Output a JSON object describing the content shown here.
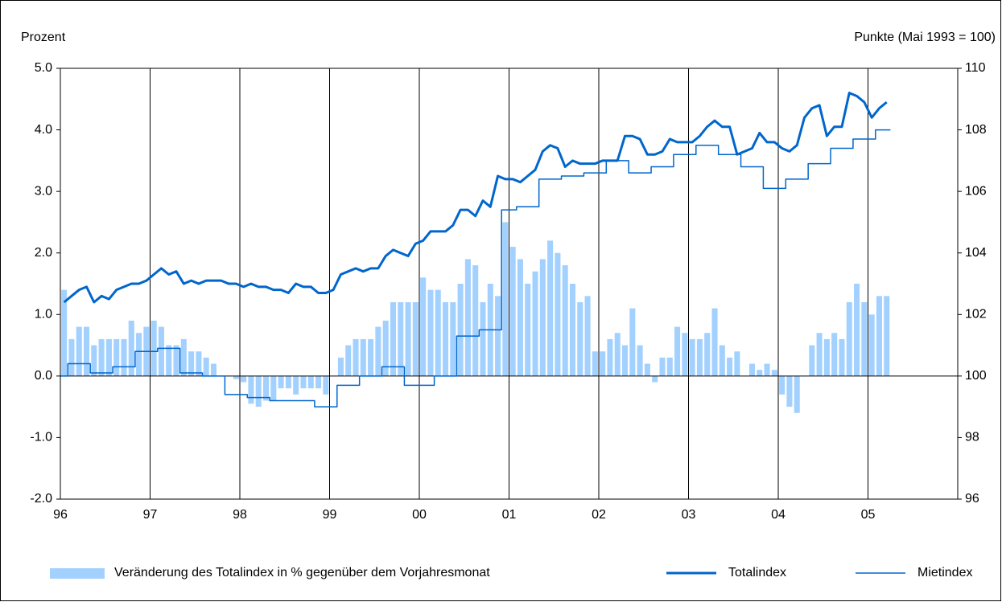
{
  "chart_data": {
    "type": "bar-line",
    "y_label": "Prozent",
    "y2_label": "Punkte (Mai 1993 = 100)",
    "categories": [
      "96",
      null,
      null,
      null,
      null,
      null,
      null,
      null,
      null,
      null,
      null,
      null,
      "97",
      null,
      null,
      null,
      null,
      null,
      null,
      null,
      null,
      null,
      null,
      null,
      "98",
      null,
      null,
      null,
      null,
      null,
      null,
      null,
      null,
      null,
      null,
      null,
      "99",
      null,
      null,
      null,
      null,
      null,
      null,
      null,
      null,
      null,
      null,
      null,
      "00",
      null,
      null,
      null,
      null,
      null,
      null,
      null,
      null,
      null,
      null,
      null,
      "01",
      null,
      null,
      null,
      null,
      null,
      null,
      null,
      null,
      null,
      null,
      null,
      "02",
      null,
      null,
      null,
      null,
      null,
      null,
      null,
      null,
      null,
      null,
      null,
      "03",
      null,
      null,
      null,
      null,
      null,
      null,
      null,
      null,
      null,
      null,
      null,
      "04",
      null,
      null,
      null,
      null,
      null,
      null,
      null,
      null,
      null,
      null,
      null,
      "05",
      null,
      null,
      null,
      null,
      null,
      null,
      null,
      null,
      null,
      null,
      null
    ],
    "series": [
      {
        "name": "Veränderung des Totalindex in % gegenüber dem Vorjahresmonat",
        "kind": "bar",
        "color": "#a3d1ff",
        "values": [
          1.4,
          0.6,
          0.8,
          0.8,
          0.5,
          0.6,
          0.6,
          0.6,
          0.6,
          0.9,
          0.7,
          0.8,
          0.9,
          0.8,
          0.5,
          0.5,
          0.6,
          0.4,
          0.4,
          0.3,
          0.2,
          0.0,
          0.0,
          -0.05,
          -0.1,
          -0.45,
          -0.5,
          -0.4,
          -0.4,
          -0.2,
          -0.2,
          -0.3,
          -0.2,
          -0.2,
          -0.2,
          -0.3,
          0.0,
          0.3,
          0.5,
          0.6,
          0.6,
          0.6,
          0.8,
          0.9,
          1.2,
          1.2,
          1.2,
          1.2,
          1.6,
          1.4,
          1.4,
          1.2,
          1.2,
          1.5,
          1.9,
          1.8,
          1.2,
          1.5,
          1.3,
          2.5,
          2.1,
          1.9,
          1.5,
          1.7,
          1.9,
          2.2,
          2.0,
          1.8,
          1.5,
          1.2,
          1.3,
          0.4,
          0.4,
          0.6,
          0.7,
          0.5,
          1.1,
          0.5,
          0.2,
          -0.1,
          0.3,
          0.3,
          0.8,
          0.7,
          0.6,
          0.6,
          0.7,
          1.1,
          0.5,
          0.3,
          0.4,
          0.0,
          0.2,
          0.1,
          0.2,
          0.1,
          -0.3,
          -0.5,
          -0.6,
          0.0,
          0.5,
          0.7,
          0.6,
          0.7,
          0.6,
          1.2,
          1.5,
          1.2,
          1.0,
          1.3,
          1.3,
          null,
          null,
          null,
          null,
          null,
          null,
          null,
          null,
          null
        ]
      },
      {
        "name": "Totalindex",
        "kind": "line",
        "axis": "y2",
        "color": "#0066cc",
        "width": 3,
        "values": [
          102.4,
          102.6,
          102.8,
          102.9,
          102.4,
          102.6,
          102.5,
          102.8,
          102.9,
          103.0,
          103.0,
          103.1,
          103.3,
          103.5,
          103.3,
          103.4,
          103.0,
          103.1,
          103.0,
          103.1,
          103.1,
          103.1,
          103.0,
          103.0,
          102.9,
          103.0,
          102.9,
          102.9,
          102.8,
          102.8,
          102.7,
          103.0,
          102.9,
          102.9,
          102.7,
          102.7,
          102.8,
          103.3,
          103.4,
          103.5,
          103.4,
          103.5,
          103.5,
          103.9,
          104.1,
          104.0,
          103.9,
          104.3,
          104.4,
          104.7,
          104.7,
          104.7,
          104.9,
          105.4,
          105.4,
          105.2,
          105.7,
          105.5,
          106.5,
          106.4,
          106.4,
          106.3,
          106.5,
          106.7,
          107.3,
          107.5,
          107.4,
          106.8,
          107.0,
          106.9,
          106.9,
          106.9,
          107.0,
          107.0,
          107.0,
          107.8,
          107.8,
          107.7,
          107.2,
          107.2,
          107.3,
          107.7,
          107.6,
          107.6,
          107.6,
          107.8,
          108.1,
          108.3,
          108.1,
          108.1,
          107.2,
          107.3,
          107.4,
          107.9,
          107.6,
          107.6,
          107.4,
          107.3,
          107.5,
          108.4,
          108.7,
          108.8,
          107.8,
          108.1,
          108.1,
          109.2,
          109.1,
          108.9,
          108.4,
          108.7,
          108.9,
          null,
          null,
          null,
          null,
          null,
          null,
          null,
          null,
          null
        ]
      },
      {
        "name": "Mietindex",
        "kind": "step",
        "axis": "y2",
        "color": "#0066cc",
        "width": 1.5,
        "values": [
          100.0,
          100.4,
          100.4,
          100.4,
          100.1,
          100.1,
          100.1,
          100.3,
          100.3,
          100.3,
          100.8,
          100.8,
          100.8,
          100.9,
          100.9,
          100.9,
          100.1,
          100.1,
          100.1,
          100.0,
          100.0,
          100.0,
          99.4,
          99.4,
          99.4,
          99.3,
          99.3,
          99.3,
          99.2,
          99.2,
          99.2,
          99.2,
          99.2,
          99.2,
          99.0,
          99.0,
          99.0,
          99.7,
          99.7,
          99.7,
          100.0,
          100.0,
          100.0,
          100.3,
          100.3,
          100.3,
          99.7,
          99.7,
          99.7,
          99.7,
          100.0,
          100.0,
          100.0,
          101.3,
          101.3,
          101.3,
          101.5,
          101.5,
          101.5,
          105.4,
          105.4,
          105.5,
          105.5,
          105.5,
          106.4,
          106.4,
          106.4,
          106.5,
          106.5,
          106.5,
          106.6,
          106.6,
          106.6,
          107.0,
          107.0,
          107.0,
          106.6,
          106.6,
          106.6,
          106.8,
          106.8,
          106.8,
          107.2,
          107.2,
          107.2,
          107.5,
          107.5,
          107.5,
          107.2,
          107.2,
          107.2,
          106.8,
          106.8,
          106.8,
          106.1,
          106.1,
          106.1,
          106.4,
          106.4,
          106.4,
          106.9,
          106.9,
          106.9,
          107.4,
          107.4,
          107.4,
          107.7,
          107.7,
          107.7,
          108.0,
          108.0,
          null,
          null,
          null,
          null,
          null,
          null,
          null,
          null,
          null
        ]
      }
    ],
    "ylim": [
      -2,
      5
    ],
    "yticks": [
      {
        "value": -2,
        "label": "-2.0"
      },
      {
        "value": -1,
        "label": "-1.0"
      },
      {
        "value": 0,
        "label": "0.0"
      },
      {
        "value": 1,
        "label": "1.0"
      },
      {
        "value": 2,
        "label": "2.0"
      },
      {
        "value": 3,
        "label": "3.0"
      },
      {
        "value": 4,
        "label": "4.0"
      },
      {
        "value": 5,
        "label": "5.0"
      }
    ],
    "y2lim": [
      96,
      110
    ],
    "y2ticks": [
      96,
      98,
      100,
      102,
      104,
      106,
      108,
      110
    ],
    "grid": "x",
    "legend": "bottom"
  }
}
